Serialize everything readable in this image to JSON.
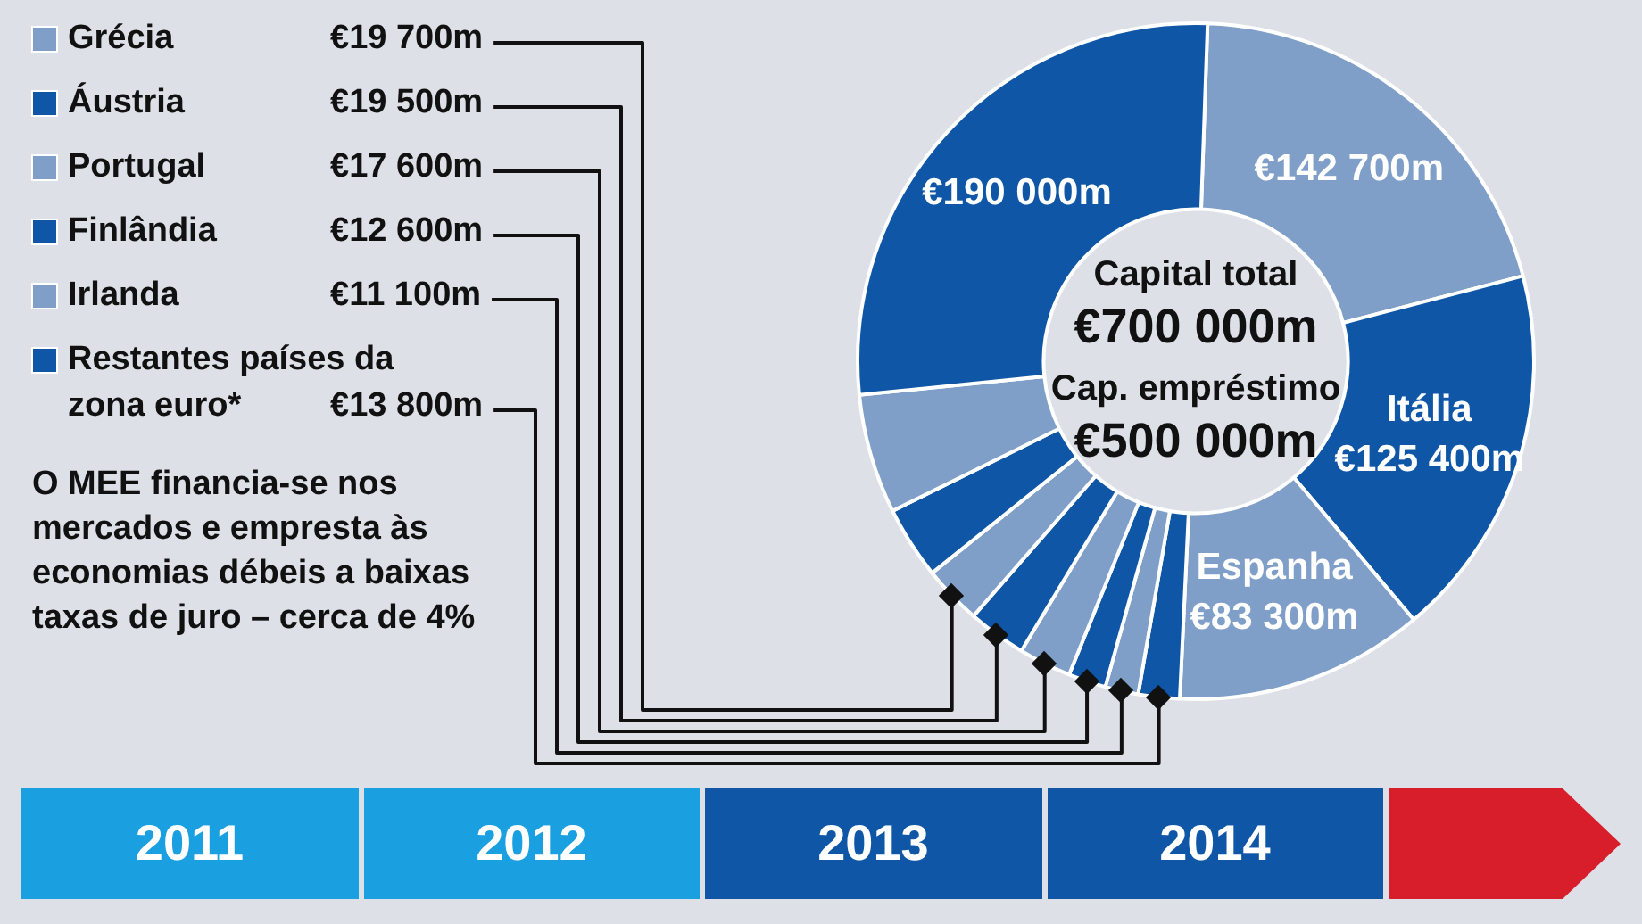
{
  "chart_data": {
    "type": "donut",
    "categories": [
      null,
      "Itália",
      "Espanha",
      "Restantes países da zona euro*",
      "Irlanda",
      "Finlândia",
      "Portugal",
      "Áustria",
      "Grécia",
      null,
      null,
      null
    ],
    "values": [
      142700,
      125400,
      83300,
      13800,
      11100,
      12600,
      17600,
      19500,
      19700,
      24300,
      40000,
      190000
    ],
    "value_labels": [
      "€142 700m",
      "€125 400m",
      "€83 300m",
      "€13 800m",
      "€11 100m",
      "€12 600m",
      "€17 600m",
      "€19 500m",
      "€19 700m",
      null,
      null,
      "€190 000m"
    ],
    "colors": [
      "#7f9fc9",
      "#0f57a6",
      "#7f9fc9",
      "#0f57a6",
      "#7f9fc9",
      "#0f57a6",
      "#7f9fc9",
      "#0f57a6",
      "#7f9fc9",
      "#0f57a6",
      "#7f9fc9",
      "#0f57a6"
    ],
    "legend": "left",
    "annotations": [
      "Capital total",
      "€700 000m",
      "Cap. empréstimo",
      "€500 000m",
      "O MEE financia-se nos mercados e empresta às economias débeis a baixas taxas de juro – cerca de 4%",
      "2011",
      "2012",
      "2013",
      "2014"
    ]
  }
}
